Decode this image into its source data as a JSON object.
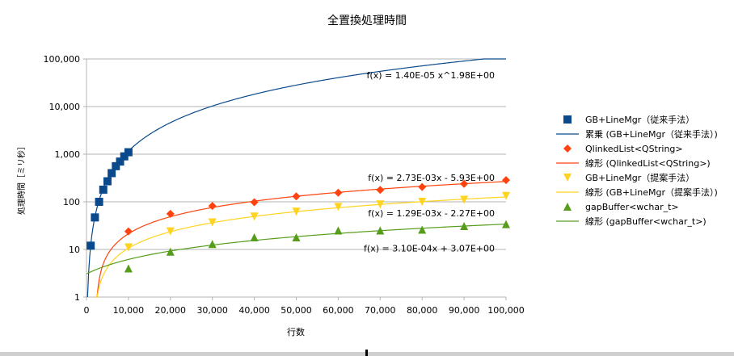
{
  "chart_data": {
    "type": "scatter",
    "title": "全置換処理時間",
    "xlabel": "行数",
    "ylabel": "処理時間［ミリ秒］",
    "x_scale": "linear",
    "y_scale": "log",
    "xlim": [
      0,
      100000
    ],
    "ylim": [
      1,
      100000
    ],
    "grid": "horizontal",
    "legend_position": "right",
    "x_ticks": [
      "0",
      "10,000",
      "20,000",
      "30,000",
      "40,000",
      "50,000",
      "60,000",
      "70,000",
      "80,000",
      "90,000",
      "100,000"
    ],
    "y_ticks": [
      "1",
      "10",
      "100",
      "1,000",
      "10,000",
      "100,000"
    ],
    "series": [
      {
        "name": "GB+LineMgr（従来手法）",
        "marker": "square",
        "color": "#0a4a8c",
        "points": [
          [
            1000,
            12
          ],
          [
            2000,
            47
          ],
          [
            3000,
            100
          ],
          [
            4000,
            180
          ],
          [
            5000,
            270
          ],
          [
            6000,
            400
          ],
          [
            7000,
            560
          ],
          [
            8000,
            700
          ],
          [
            9000,
            900
          ],
          [
            10000,
            1100
          ]
        ]
      },
      {
        "name": "QlinkedList<QString>",
        "marker": "diamond",
        "color": "#ff420e",
        "points": [
          [
            10000,
            24
          ],
          [
            20000,
            56
          ],
          [
            30000,
            82
          ],
          [
            40000,
            98
          ],
          [
            50000,
            130
          ],
          [
            60000,
            155
          ],
          [
            70000,
            178
          ],
          [
            80000,
            205
          ],
          [
            90000,
            238
          ],
          [
            100000,
            285
          ]
        ]
      },
      {
        "name": "GB+LineMgr（提案手法）",
        "marker": "triangle-down",
        "color": "#ffd320",
        "points": [
          [
            10000,
            11
          ],
          [
            20000,
            24
          ],
          [
            30000,
            37
          ],
          [
            40000,
            49
          ],
          [
            50000,
            62
          ],
          [
            60000,
            78
          ],
          [
            70000,
            88
          ],
          [
            80000,
            100
          ],
          [
            90000,
            110
          ],
          [
            100000,
            133
          ]
        ]
      },
      {
        "name": "gapBuffer<wchar_t>",
        "marker": "triangle-up",
        "color": "#579d1c",
        "points": [
          [
            10000,
            4
          ],
          [
            20000,
            9
          ],
          [
            30000,
            13
          ],
          [
            40000,
            18
          ],
          [
            50000,
            18
          ],
          [
            60000,
            25
          ],
          [
            70000,
            25
          ],
          [
            80000,
            26
          ],
          [
            90000,
            31
          ],
          [
            100000,
            34
          ]
        ]
      }
    ],
    "trendlines": [
      {
        "name": "累乗 (GB+LineMgr（従来手法）)",
        "type": "power",
        "a": 1.4e-05,
        "b": 1.98,
        "color": "#0a4a8c",
        "equation": "f(x) = 1.40E-05 x^1.98E+00"
      },
      {
        "name": "線形 (QlinkedList<QString>)",
        "type": "linear",
        "slope": 0.00273,
        "intercept": -5.93,
        "color": "#ff420e",
        "equation": "f(x) = 2.73E-03x - 5.93E+00"
      },
      {
        "name": "線形 (GB+LineMgr（提案手法）)",
        "type": "linear",
        "slope": 0.00129,
        "intercept": -2.27,
        "color": "#ffd320",
        "equation": "f(x) = 1.29E-03x - 2.27E+00"
      },
      {
        "name": "線形 (gapBuffer<wchar_t>)",
        "type": "linear",
        "slope": 0.00031,
        "intercept": 3.07,
        "color": "#579d1c",
        "equation": "f(x) = 3.10E-04x + 3.07E+00"
      }
    ],
    "legend": [
      {
        "label": "GB+LineMgr（従来手法）",
        "kind": "marker",
        "marker": "square",
        "color": "#0a4a8c"
      },
      {
        "label": "累乗 (GB+LineMgr（従来手法）)",
        "kind": "line",
        "color": "#0a4a8c"
      },
      {
        "label": "QlinkedList<QString>",
        "kind": "marker",
        "marker": "diamond",
        "color": "#ff420e"
      },
      {
        "label": "線形 (QlinkedList<QString>)",
        "kind": "line",
        "color": "#ff420e"
      },
      {
        "label": "GB+LineMgr（提案手法）",
        "kind": "marker",
        "marker": "triangle-down",
        "color": "#ffd320"
      },
      {
        "label": "線形 (GB+LineMgr（提案手法）)",
        "kind": "line",
        "color": "#ffd320"
      },
      {
        "label": "gapBuffer<wchar_t>",
        "kind": "marker",
        "marker": "triangle-up",
        "color": "#579d1c"
      },
      {
        "label": "線形 (gapBuffer<wchar_t>)",
        "kind": "line",
        "color": "#579d1c"
      }
    ],
    "colors": {
      "axis": "#b3b3b3",
      "grid": "#b3b3b3",
      "text": "#000000"
    }
  }
}
